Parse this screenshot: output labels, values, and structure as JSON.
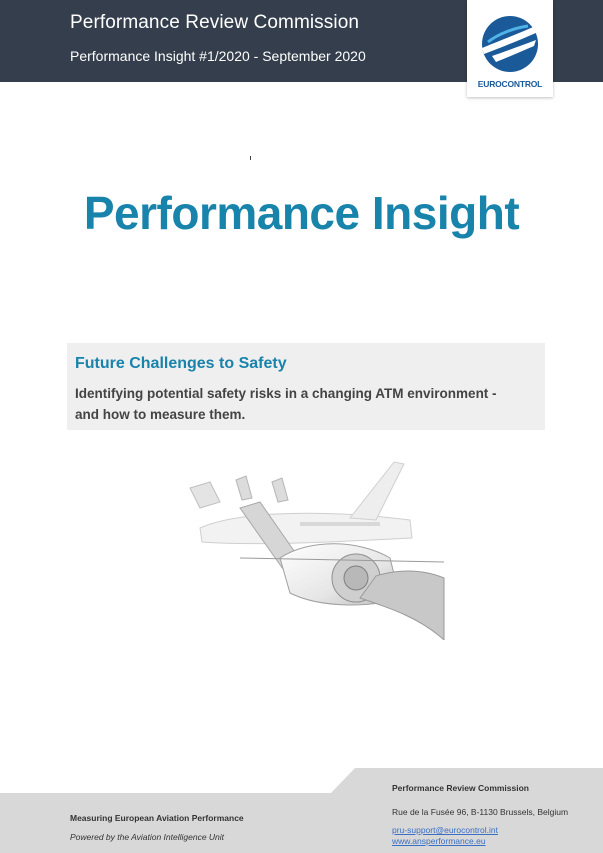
{
  "header": {
    "title": "Performance Review Commission",
    "subtitle": "Performance Insight #1/2020 - September 2020",
    "logo_text": "EUROCONTROL"
  },
  "main": {
    "title": "Performance Insight"
  },
  "topic": {
    "heading": "Future Challenges to Safety",
    "description": "Identifying potential safety risks in a changing ATM environment - and how to measure them."
  },
  "footer": {
    "left_line1": "Measuring European Aviation Performance",
    "left_line2": "Powered by the Aviation Intelligence Unit",
    "org": "Performance Review Commission",
    "address": "Rue de la Fusée 96, B-1130 Brussels, Belgium",
    "email": "pru-support@eurocontrol.int",
    "website": "www.ansperformance.eu"
  },
  "colors": {
    "header_bg": "#343e4c",
    "accent": "#1883ab",
    "logo_blue": "#1a5a99",
    "topic_bg": "#efefef",
    "footer_bg": "#d8d8d8",
    "link": "#3a6fc4"
  }
}
